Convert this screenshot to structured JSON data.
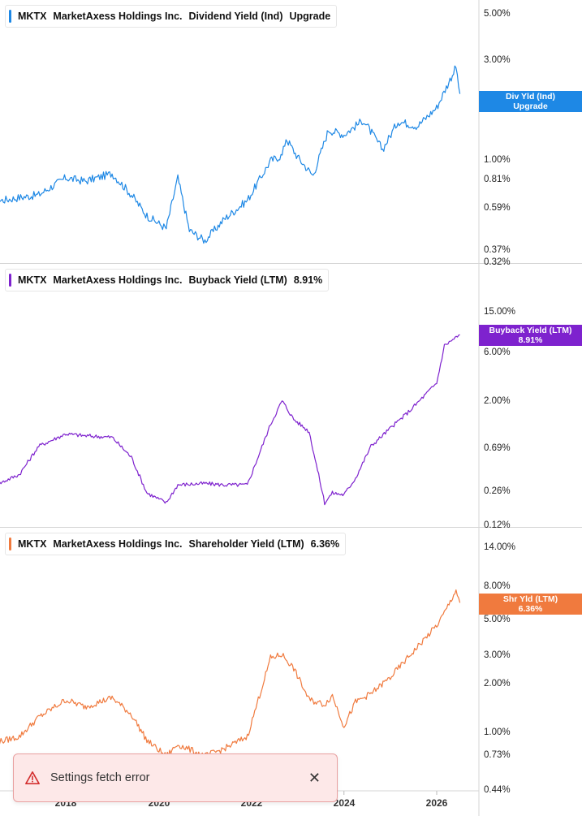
{
  "panels": [
    {
      "ticker": "MKTX",
      "company": "MarketAxess Holdings Inc.",
      "metric": "Dividend Yield (Ind)",
      "value": "Upgrade",
      "color": "#1e88e5",
      "last_label": [
        "Div Yld (Ind)",
        "Upgrade"
      ],
      "last_value": 0.0207,
      "y_ticks": [
        "5.00%",
        "3.00%",
        "1.00%",
        "0.81%",
        "0.59%",
        "0.37%"
      ],
      "y_bottom_tick": "0.32%"
    },
    {
      "ticker": "MKTX",
      "company": "MarketAxess Holdings Inc.",
      "metric": "Buyback Yield (LTM)",
      "value": "8.91%",
      "color": "#7e22ce",
      "last_label": [
        "Buyback Yield (LTM)",
        "8.91%"
      ],
      "last_value": 0.0891,
      "y_ticks": [
        "15.00%",
        "6.00%",
        "2.00%",
        "0.69%",
        "0.26%"
      ],
      "y_bottom_tick": "0.12%"
    },
    {
      "ticker": "MKTX",
      "company": "MarketAxess Holdings Inc.",
      "metric": "Shareholder Yield (LTM)",
      "value": "6.36%",
      "color": "#f07a3e",
      "last_label": [
        "Shr Yld (LTM)",
        "6.36%"
      ],
      "last_value": 0.0636,
      "y_ticks": [
        "14.00%",
        "8.00%",
        "5.00%",
        "3.00%",
        "2.00%",
        "1.00%",
        "0.73%"
      ],
      "y_bottom_tick": "0.44%"
    }
  ],
  "x_axis": {
    "labels": [
      "2018",
      "2020",
      "2022",
      "2024",
      "2026"
    ]
  },
  "toast": {
    "message": "Settings fetch error",
    "close_glyph": "✕",
    "icon": "warning-triangle-icon"
  },
  "chart_data": [
    {
      "type": "line",
      "title": "MKTX MarketAxess Holdings Inc. Dividend Yield (Ind)",
      "y_scale": "log",
      "ylim": [
        0.32,
        5.0
      ],
      "series": [
        {
          "name": "Div Yld (Ind)",
          "x": [
            "2016-06",
            "2017-01",
            "2017-06",
            "2018-01",
            "2018-06",
            "2019-01",
            "2019-06",
            "2019-10",
            "2020-03",
            "2020-06",
            "2020-09",
            "2021-01",
            "2021-06",
            "2021-12",
            "2022-06",
            "2022-09",
            "2022-10",
            "2023-01",
            "2023-05",
            "2023-09",
            "2024-01",
            "2024-06",
            "2024-11",
            "2025-03",
            "2025-08",
            "2026-01",
            "2026-06",
            "2026-07"
          ],
          "values": [
            0.63,
            0.66,
            0.68,
            0.82,
            0.79,
            0.86,
            0.68,
            0.54,
            0.47,
            0.82,
            0.46,
            0.41,
            0.52,
            0.64,
            0.99,
            1.05,
            1.27,
            1.03,
            0.84,
            1.39,
            1.32,
            1.55,
            1.12,
            1.53,
            1.45,
            1.78,
            2.78,
            2.07
          ]
        }
      ]
    },
    {
      "type": "line",
      "title": "MKTX MarketAxess Holdings Inc. Buyback Yield (LTM)",
      "y_scale": "log",
      "ylim": [
        0.12,
        15.0
      ],
      "series": [
        {
          "name": "Buyback Yield (LTM)",
          "x": [
            "2016-06",
            "2017-01",
            "2017-06",
            "2018-01",
            "2018-06",
            "2019-01",
            "2019-06",
            "2019-10",
            "2020-03",
            "2020-06",
            "2021-01",
            "2021-06",
            "2021-12",
            "2022-06",
            "2022-09",
            "2022-12",
            "2023-04",
            "2023-08",
            "2023-10",
            "2024-01",
            "2024-04",
            "2024-08",
            "2025-01",
            "2025-06",
            "2026-01",
            "2026-03",
            "2026-07"
          ],
          "values": [
            0.29,
            0.38,
            0.72,
            0.95,
            0.91,
            0.88,
            0.56,
            0.25,
            0.2,
            0.3,
            0.31,
            0.3,
            0.3,
            1.18,
            2.01,
            1.32,
            1.0,
            0.2,
            0.25,
            0.24,
            0.35,
            0.72,
            1.08,
            1.6,
            3.0,
            7.0,
            8.91
          ]
        }
      ]
    },
    {
      "type": "line",
      "title": "MKTX MarketAxess Holdings Inc. Shareholder Yield (LTM)",
      "y_scale": "log",
      "ylim": [
        0.44,
        14.0
      ],
      "series": [
        {
          "name": "Shr Yld (LTM)",
          "x": [
            "2016-06",
            "2017-01",
            "2017-06",
            "2018-01",
            "2018-06",
            "2019-01",
            "2019-06",
            "2019-10",
            "2020-03",
            "2020-06",
            "2021-01",
            "2021-06",
            "2021-12",
            "2022-06",
            "2022-09",
            "2022-12",
            "2023-04",
            "2023-08",
            "2023-10",
            "2024-01",
            "2024-04",
            "2024-08",
            "2025-01",
            "2025-06",
            "2026-01",
            "2026-03",
            "2026-06",
            "2026-07"
          ],
          "values": [
            0.86,
            0.95,
            1.25,
            1.6,
            1.45,
            1.65,
            1.3,
            0.9,
            0.72,
            0.85,
            0.72,
            0.8,
            0.95,
            2.9,
            3.05,
            2.5,
            1.6,
            1.5,
            1.7,
            1.1,
            1.55,
            1.75,
            2.2,
            3.0,
            4.6,
            5.5,
            7.6,
            6.36
          ]
        }
      ]
    }
  ]
}
